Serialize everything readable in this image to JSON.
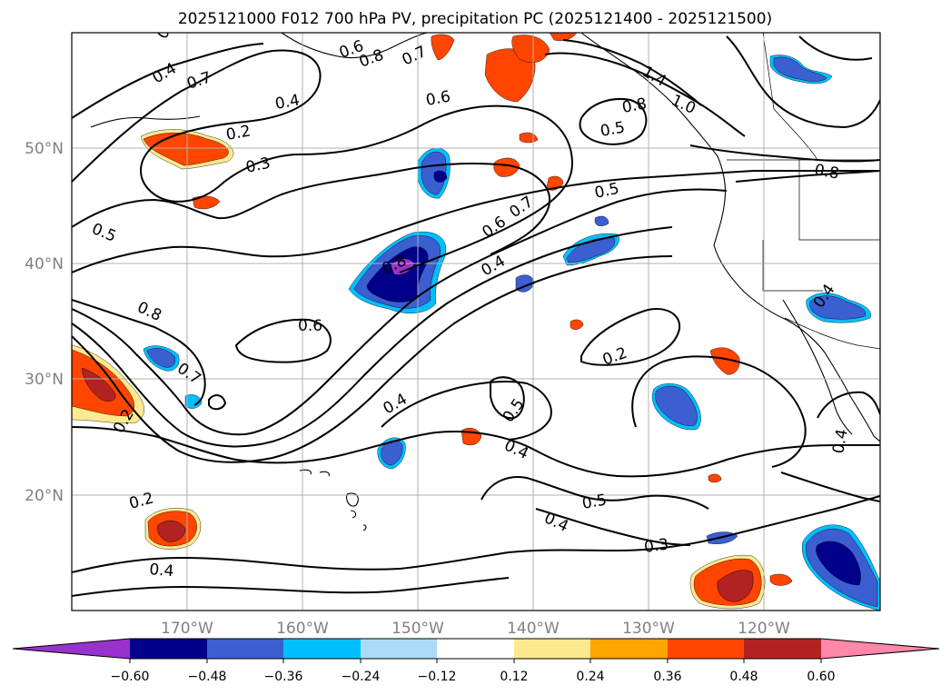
{
  "title": "2025121000 F012 700 hPa PV, precipitation PC (2025121400 - 2025121500)",
  "map": {
    "lat_labels": [
      "50°N",
      "40°N",
      "30°N",
      "20°N"
    ],
    "lon_labels": [
      "170°W",
      "160°W",
      "150°W",
      "140°W",
      "130°W",
      "120°W"
    ],
    "contour_labels": [
      "0.3",
      "0.4",
      "0.7",
      "0.4",
      "0.2",
      "0.3",
      "0.6",
      "0.8",
      "0.7",
      "1.4",
      "1.0",
      "0.6",
      "0.5",
      "0.8",
      "0.8",
      "0.5",
      "0.7",
      "0.6",
      "0.5",
      "0.4",
      "0.8",
      "0.6",
      "0.8",
      "0.7",
      "0.4",
      "0.2",
      "0.4",
      "0.5",
      "0.4",
      "0.2",
      "0.5",
      "0.4",
      "0.3",
      "0.2",
      "0.4",
      "0.4"
    ]
  },
  "colorbar": {
    "ticks": [
      "−0.60",
      "−0.48",
      "−0.36",
      "−0.24",
      "−0.12",
      "0.12",
      "0.24",
      "0.36",
      "0.48",
      "0.60"
    ],
    "colors": [
      "#9932cc",
      "#00008b",
      "#3b5fd0",
      "#00bfff",
      "#aadcf8",
      "#ffffff",
      "#ffe98f",
      "#ffa500",
      "#ff4500",
      "#b22222",
      "#ff88aa"
    ]
  },
  "fill_colors": {
    "neg_light": "#00bfff",
    "neg_mid": "#3b5fd0",
    "neg_strong": "#00008b",
    "neg_extreme": "#9932cc",
    "pos_light": "#ffe98f",
    "pos_mid": "#ffa500",
    "pos_strong": "#ff4500",
    "pos_extreme": "#b22222"
  }
}
